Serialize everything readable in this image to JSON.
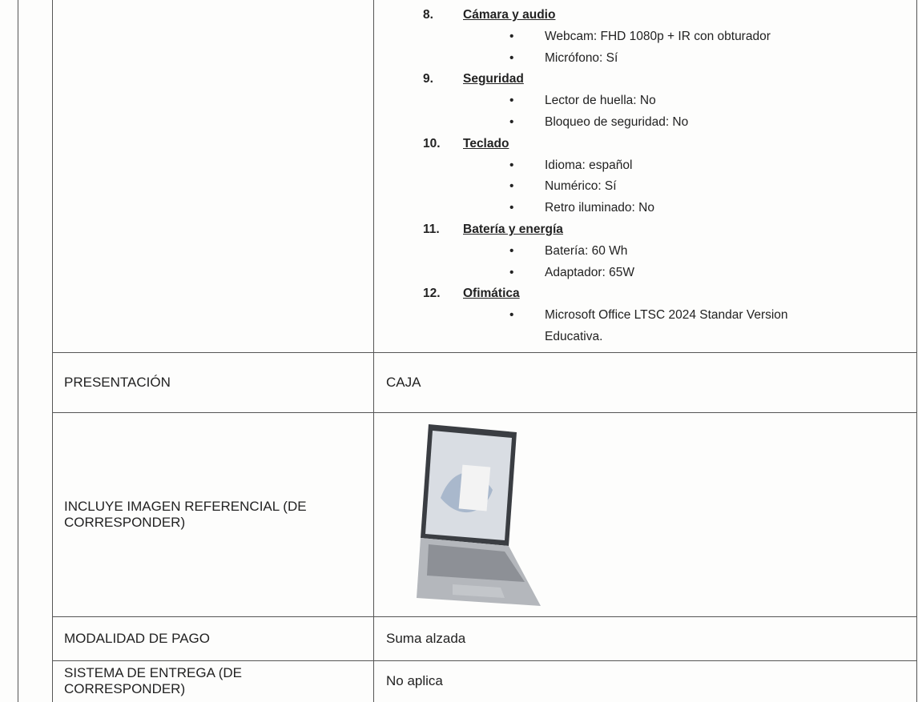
{
  "specs": [
    {
      "number": "8.",
      "title": "Cámara y audio",
      "items": [
        "Webcam: FHD 1080p + IR con obturador",
        "Micrófono: Sí"
      ]
    },
    {
      "number": "9.",
      "title": "Seguridad",
      "items": [
        "Lector de huella: No",
        "Bloqueo de seguridad: No"
      ]
    },
    {
      "number": "10.",
      "title": "Teclado",
      "items": [
        "Idioma: español",
        "Numérico: Sí",
        "Retro iluminado: No"
      ]
    },
    {
      "number": "11.",
      "title": "Batería y energía",
      "items": [
        "Batería: 60 Wh",
        "Adaptador: 65W"
      ]
    },
    {
      "number": "12.",
      "title": "Ofimática",
      "items": [
        "Microsoft Office LTSC 2024 Standar Version Educativa."
      ]
    }
  ],
  "rows": [
    {
      "label": "PRESENTACIÓN",
      "value": "CAJA"
    },
    {
      "label": "INCLUYE IMAGEN REFERENCIAL (DE CORRESPONDER)"
    },
    {
      "label": "MODALIDAD DE PAGO",
      "value": "Suma alzada"
    },
    {
      "label": "SISTEMA DE ENTREGA (DE CORRESPONDER)",
      "value": "No aplica"
    }
  ]
}
